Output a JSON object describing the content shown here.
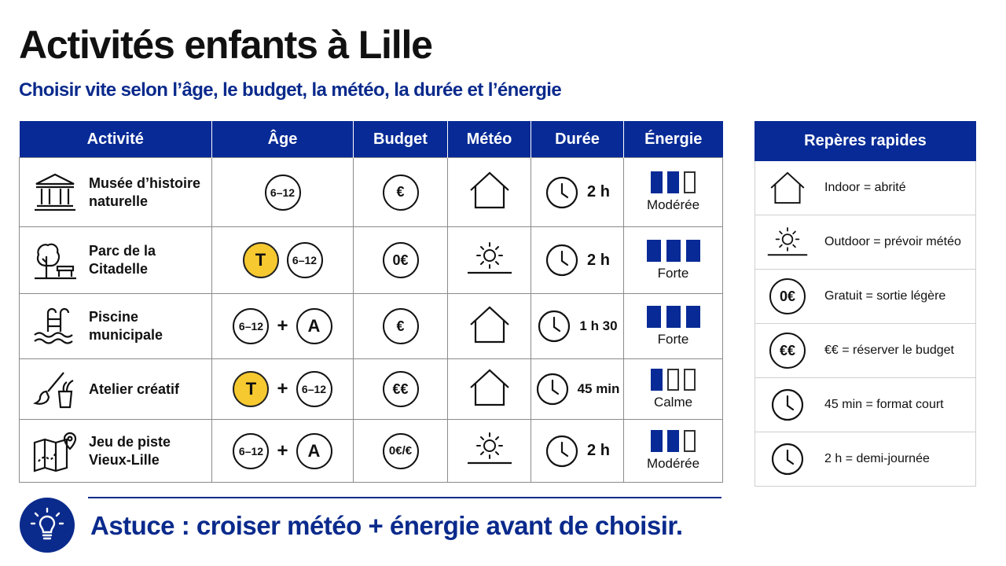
{
  "title": "Activités enfants à Lille",
  "subtitle": "Choisir vite selon l’âge, le budget, la météo, la durée et l’énergie",
  "headers": {
    "activity": "Activité",
    "age": "Âge",
    "budget": "Budget",
    "weather": "Météo",
    "duration": "Durée",
    "energy": "Énergie"
  },
  "rows": [
    {
      "name": "Musée d’histoire naturelle",
      "icon": "museum-icon",
      "age": [
        "6–12"
      ],
      "budget": "€",
      "weather": "indoor",
      "duration": "2 h",
      "energy_level": 2,
      "energy_label": "Modérée"
    },
    {
      "name": "Parc de la Citadelle",
      "icon": "park-icon",
      "age": [
        "T",
        "6–12"
      ],
      "budget": "0€",
      "weather": "outdoor",
      "duration": "2 h",
      "energy_level": 3,
      "energy_label": "Forte"
    },
    {
      "name": "Piscine municipale",
      "icon": "pool-icon",
      "age": [
        "6–12",
        "+",
        "A"
      ],
      "budget": "€",
      "weather": "indoor",
      "duration": "1 h 30",
      "energy_level": 3,
      "energy_label": "Forte"
    },
    {
      "name": "Atelier créatif",
      "icon": "paintbrush-icon",
      "age": [
        "T",
        "+",
        "6–12"
      ],
      "budget": "€€",
      "weather": "indoor",
      "duration": "45 min",
      "energy_level": 1,
      "energy_label": "Calme"
    },
    {
      "name": "Jeu de piste Vieux-Lille",
      "icon": "map-icon",
      "age": [
        "6–12",
        "+",
        "A"
      ],
      "budget": "0€/€",
      "weather": "outdoor",
      "duration": "2 h",
      "energy_level": 2,
      "energy_label": "Modérée"
    }
  ],
  "legend": {
    "title": "Repères rapides",
    "items": [
      {
        "icon": "house-icon",
        "label": "Indoor = abrité"
      },
      {
        "icon": "sun-icon",
        "label": "Outdoor = prévoir météo"
      },
      {
        "icon": "coin-icon",
        "coin": "0€",
        "label": "Gratuit = sortie légère"
      },
      {
        "icon": "coin-icon",
        "coin": "€€",
        "label": "€€ = réserver le budget"
      },
      {
        "icon": "clock-icon",
        "label": "45 min = format court"
      },
      {
        "icon": "clock-icon",
        "label": "2 h = demi-journée"
      }
    ]
  },
  "tip": "Astuce : croiser météo + énergie avant de choisir.",
  "colors": {
    "navy": "#072a96",
    "accent_text": "#0a2a8c",
    "toddler_badge": "#f6c930"
  }
}
